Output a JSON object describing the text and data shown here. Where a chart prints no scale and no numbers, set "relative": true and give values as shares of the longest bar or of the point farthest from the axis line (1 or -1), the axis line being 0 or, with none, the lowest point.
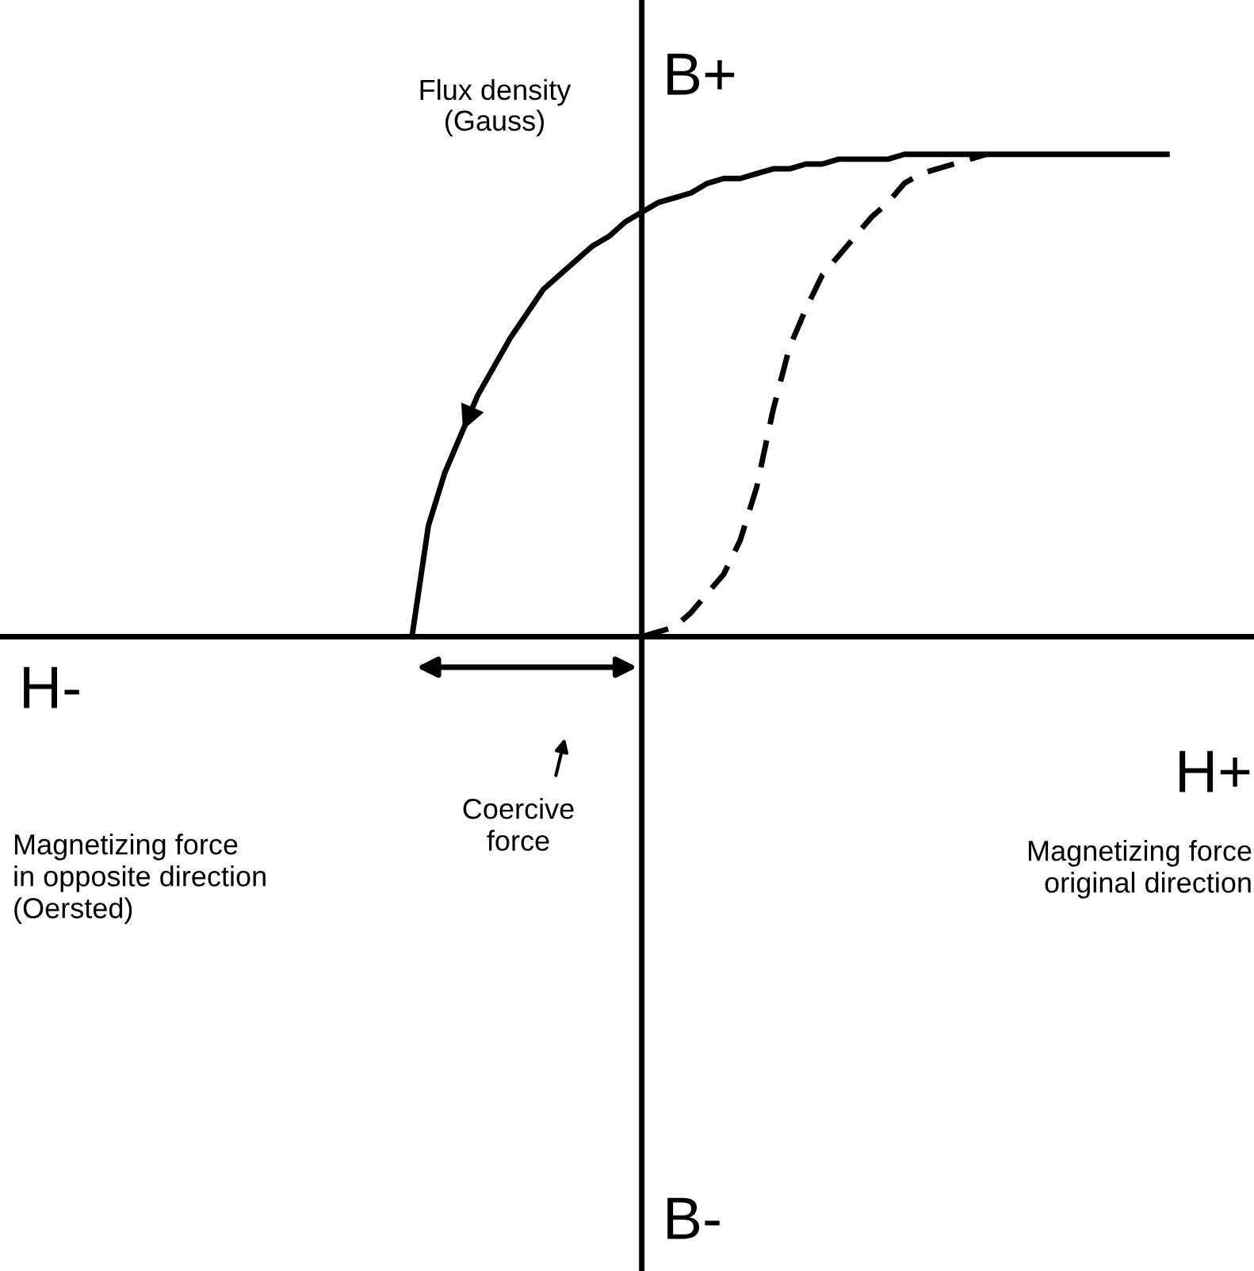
{
  "chart_data": {
    "type": "line",
    "relative": true,
    "ylabel": "Flux density\n(Gauss)",
    "categories": [
      null,
      null,
      null,
      null,
      null,
      null,
      null,
      null,
      null,
      null,
      null,
      null,
      null,
      null,
      null,
      null,
      null,
      null,
      null,
      null,
      null,
      null,
      null,
      null,
      null,
      null,
      null,
      null,
      null,
      null,
      null,
      null,
      null,
      null,
      null,
      null,
      null,
      null,
      null,
      null,
      null,
      null,
      null,
      null,
      null,
      null,
      null
    ],
    "series": [
      {
        "color": "#000000",
        "line_style": "solid",
        "values": [
          0,
          0.23,
          0.34,
          0.42,
          0.5,
          0.56,
          0.62,
          0.67,
          0.72,
          0.75,
          0.78,
          0.81,
          0.83,
          0.86,
          0.88,
          0.9,
          0.91,
          0.92,
          0.94,
          0.95,
          0.95,
          0.96,
          0.97,
          0.97,
          0.98,
          0.98,
          0.99,
          0.99,
          0.99,
          0.99,
          1,
          1,
          1,
          1,
          1,
          1,
          1,
          1,
          1,
          1,
          1,
          1,
          1,
          1,
          1,
          1,
          1
        ]
      },
      {
        "color": "#000000",
        "line_style": "dashed",
        "values": [
          null,
          null,
          null,
          null,
          null,
          null,
          null,
          null,
          null,
          null,
          null,
          null,
          null,
          null,
          0,
          0.01,
          0.02,
          0.05,
          0.09,
          0.13,
          0.2,
          0.31,
          0.47,
          0.6,
          0.68,
          0.75,
          0.79,
          0.83,
          0.87,
          0.9,
          0.94,
          0.96,
          0.97,
          0.98,
          0.99,
          1,
          null,
          null,
          null,
          null,
          null,
          null,
          null,
          null,
          null,
          null,
          null
        ]
      }
    ],
    "annotations": [
      "H-",
      "H+",
      "B+",
      "B-",
      "Magnetizing force\nin opposite direction\n(Oersted)",
      "Magnetizing force\noriginal direction",
      "Coercive\nforce"
    ],
    "marker": "none"
  }
}
